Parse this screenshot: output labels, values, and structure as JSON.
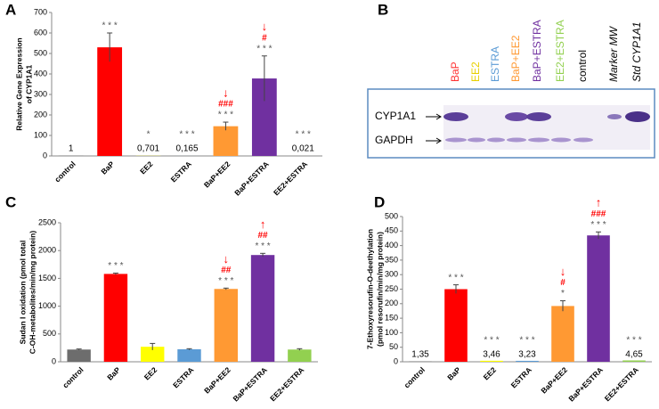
{
  "chart_data": [
    {
      "type": "bar",
      "panel": "A",
      "ylabel": [
        "Relative Gene Expression",
        "of CYP1A1"
      ],
      "categories": [
        "control",
        "BaP",
        "EE2",
        "ESTRA",
        "BaP+EE2",
        "BaP+ESTRA",
        "EE2+ESTRA"
      ],
      "values": [
        1,
        530,
        0.701,
        0.165,
        145,
        378,
        0.021
      ],
      "value_labels": [
        "1",
        null,
        "0,701",
        "0,165",
        null,
        null,
        "0,021"
      ],
      "errors": [
        null,
        70,
        null,
        null,
        20,
        110,
        null
      ],
      "colors": [
        "#6d6d6d",
        "#ff0000",
        "#ffff00",
        "#5b9bd5",
        "#ff9933",
        "#7030a0",
        "#92d050"
      ],
      "stars": [
        null,
        "* * *",
        "*",
        "* * *",
        "* * *",
        "* * *",
        "* * *"
      ],
      "hashes": [
        null,
        null,
        null,
        null,
        "###",
        "#",
        null
      ],
      "arrows": [
        null,
        null,
        null,
        null,
        "↓",
        "↓",
        null
      ],
      "ylim": [
        0,
        700
      ],
      "yticks": [
        0,
        100,
        200,
        300,
        400,
        500,
        600,
        700
      ]
    },
    {
      "type": "bar",
      "panel": "C",
      "ylabel": [
        "Sudan I oxidation (pmol total",
        "C-OH-metabolites/min/mg protein)"
      ],
      "categories": [
        "control",
        "BaP",
        "EE2",
        "ESTRA",
        "BaP+EE2",
        "BaP+ESTRA",
        "EE2+ESTRA"
      ],
      "values": [
        220,
        1580,
        270,
        225,
        1310,
        1920,
        220
      ],
      "errors": [
        10,
        15,
        60,
        10,
        15,
        30,
        15
      ],
      "colors": [
        "#6d6d6d",
        "#ff0000",
        "#ffff00",
        "#5b9bd5",
        "#ff9933",
        "#7030a0",
        "#92d050"
      ],
      "stars": [
        null,
        "* * *",
        null,
        null,
        "* * *",
        "* * *",
        null
      ],
      "hashes": [
        null,
        null,
        null,
        null,
        "##",
        "##",
        null
      ],
      "arrows": [
        null,
        null,
        null,
        null,
        "↓",
        "↑",
        null
      ],
      "ylim": [
        0,
        2500
      ],
      "yticks": [
        0,
        500,
        1000,
        1500,
        2000,
        2500
      ]
    },
    {
      "type": "bar",
      "panel": "D",
      "ylabel": [
        "7-Ethoxyresorufin-O-deethylation",
        "(pmol resorufin/min/mg protein)"
      ],
      "categories": [
        "control",
        "BaP",
        "EE2",
        "ESTRA",
        "BaP+EE2",
        "BaP+ESTRA",
        "EE2+ESTRA"
      ],
      "values": [
        1.35,
        250,
        3.46,
        3.23,
        192,
        435,
        4.65
      ],
      "value_labels": [
        "1,35",
        null,
        "3,46",
        "3,23",
        null,
        null,
        "4,65"
      ],
      "errors": [
        null,
        15,
        null,
        null,
        18,
        12,
        null
      ],
      "colors": [
        "#6d6d6d",
        "#ff0000",
        "#ffff00",
        "#5b9bd5",
        "#ff9933",
        "#7030a0",
        "#92d050"
      ],
      "stars": [
        null,
        "* * *",
        "* * *",
        "* * *",
        "*",
        "* * *",
        "* * *"
      ],
      "hashes": [
        null,
        null,
        null,
        null,
        "#",
        "###",
        null
      ],
      "arrows": [
        null,
        null,
        null,
        null,
        "↓",
        "↑",
        null
      ],
      "ylim": [
        0,
        500
      ],
      "yticks": [
        0,
        50,
        100,
        150,
        200,
        250,
        300,
        350,
        400,
        450,
        500
      ]
    }
  ],
  "blot": {
    "panel": "B",
    "lanes": [
      {
        "label": "BaP",
        "color": "#ff3333",
        "italic": false
      },
      {
        "label": "EE2",
        "color": "#e8d000",
        "italic": false
      },
      {
        "label": "ESTRA",
        "color": "#5b9bd5",
        "italic": false
      },
      {
        "label": "BaP+EE2",
        "color": "#ff9933",
        "italic": false
      },
      {
        "label": "BaP+ESTRA",
        "color": "#7030a0",
        "italic": false
      },
      {
        "label": "EE2+ESTRA",
        "color": "#92d050",
        "italic": false
      },
      {
        "label": "control",
        "color": "#000000",
        "italic": false
      },
      {
        "label": "Marker MW",
        "color": "#000000",
        "italic": true
      },
      {
        "label": "Std CYP1A1",
        "color": "#000000",
        "italic": true
      }
    ],
    "rows": [
      "CYP1A1",
      "GAPDH"
    ]
  }
}
